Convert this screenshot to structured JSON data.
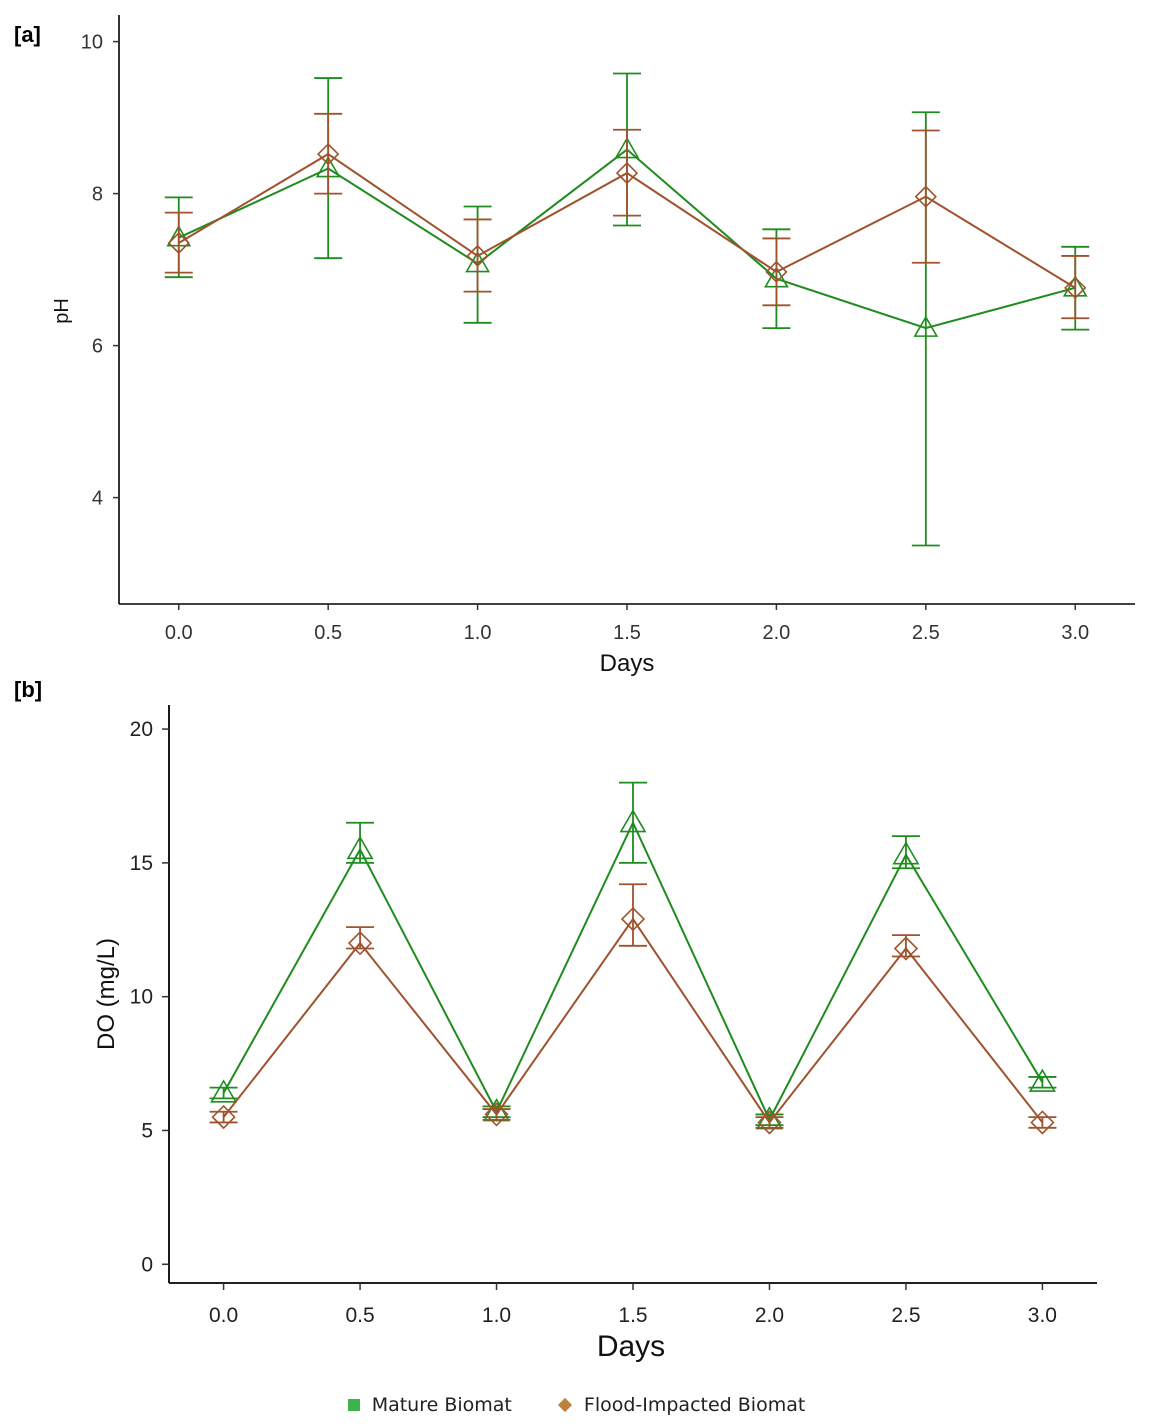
{
  "colors": {
    "mature": "#1e8c1e",
    "flood": "#a0522d",
    "legend_mature": "#3cb44b",
    "legend_flood": "#c08040",
    "axis": "#000000"
  },
  "chart_data": [
    {
      "panel": "[a]",
      "type": "line",
      "title": "",
      "xlabel": "Days",
      "ylabel": "pH",
      "x": [
        0.0,
        0.5,
        1.0,
        1.5,
        2.0,
        2.5,
        3.0
      ],
      "x_tick_labels": [
        "0.0",
        "0.5",
        "1.0",
        "1.5",
        "2.0",
        "2.5",
        "3.0"
      ],
      "y_ticks": [
        4,
        6,
        8,
        10
      ],
      "y_tick_labels": [
        "4",
        "6",
        "8",
        "10"
      ],
      "xlim": [
        -0.2,
        3.2
      ],
      "ylim": [
        2.6,
        10.35
      ],
      "grid": false,
      "series": [
        {
          "name": "Mature Biomat",
          "marker": "triangle",
          "values": [
            7.42,
            8.33,
            7.08,
            8.58,
            6.88,
            6.23,
            6.76
          ],
          "error_low": [
            6.9,
            7.15,
            6.3,
            7.58,
            6.23,
            3.37,
            6.21
          ],
          "error_high": [
            7.95,
            9.52,
            7.83,
            9.58,
            7.53,
            9.07,
            7.3
          ]
        },
        {
          "name": "Flood-Impacted Biomat",
          "marker": "diamond",
          "values": [
            7.35,
            8.52,
            7.18,
            8.27,
            6.97,
            7.96,
            6.76
          ],
          "error_low": [
            6.96,
            8.0,
            6.71,
            7.71,
            6.53,
            7.09,
            6.36
          ],
          "error_high": [
            7.75,
            9.05,
            7.66,
            8.84,
            7.41,
            8.83,
            7.18
          ]
        }
      ]
    },
    {
      "panel": "[b]",
      "type": "line",
      "title": "",
      "xlabel": "Days",
      "ylabel": "DO (mg/L)",
      "x": [
        0.0,
        0.5,
        1.0,
        1.5,
        2.0,
        2.5,
        3.0
      ],
      "x_tick_labels": [
        "0.0",
        "0.5",
        "1.0",
        "1.5",
        "2.0",
        "2.5",
        "3.0"
      ],
      "y_ticks": [
        0,
        5,
        10,
        15,
        20
      ],
      "y_tick_labels": [
        "0",
        "5",
        "10",
        "15",
        "20"
      ],
      "xlim": [
        -0.2,
        3.2
      ],
      "ylim": [
        -0.7,
        20.9
      ],
      "grid": false,
      "series": [
        {
          "name": "Mature Biomat",
          "marker": "triangle",
          "values": [
            6.4,
            15.5,
            5.7,
            16.5,
            5.4,
            15.3,
            6.8
          ],
          "error_low": [
            6.2,
            15.0,
            5.5,
            15.0,
            5.2,
            14.8,
            6.6
          ],
          "error_high": [
            6.6,
            16.5,
            5.9,
            18.0,
            5.6,
            16.0,
            7.0
          ]
        },
        {
          "name": "Flood-Impacted Biomat",
          "marker": "diamond",
          "values": [
            5.5,
            12.0,
            5.6,
            12.9,
            5.3,
            11.8,
            5.3
          ],
          "error_low": [
            5.3,
            11.8,
            5.4,
            11.9,
            5.1,
            11.5,
            5.1
          ],
          "error_high": [
            5.7,
            12.6,
            5.8,
            14.2,
            5.5,
            12.3,
            5.5
          ]
        }
      ]
    }
  ],
  "legend": [
    {
      "label": "Mature Biomat",
      "shape": "square-icon"
    },
    {
      "label": "Flood-Impacted Biomat",
      "shape": "diamond-icon"
    }
  ]
}
